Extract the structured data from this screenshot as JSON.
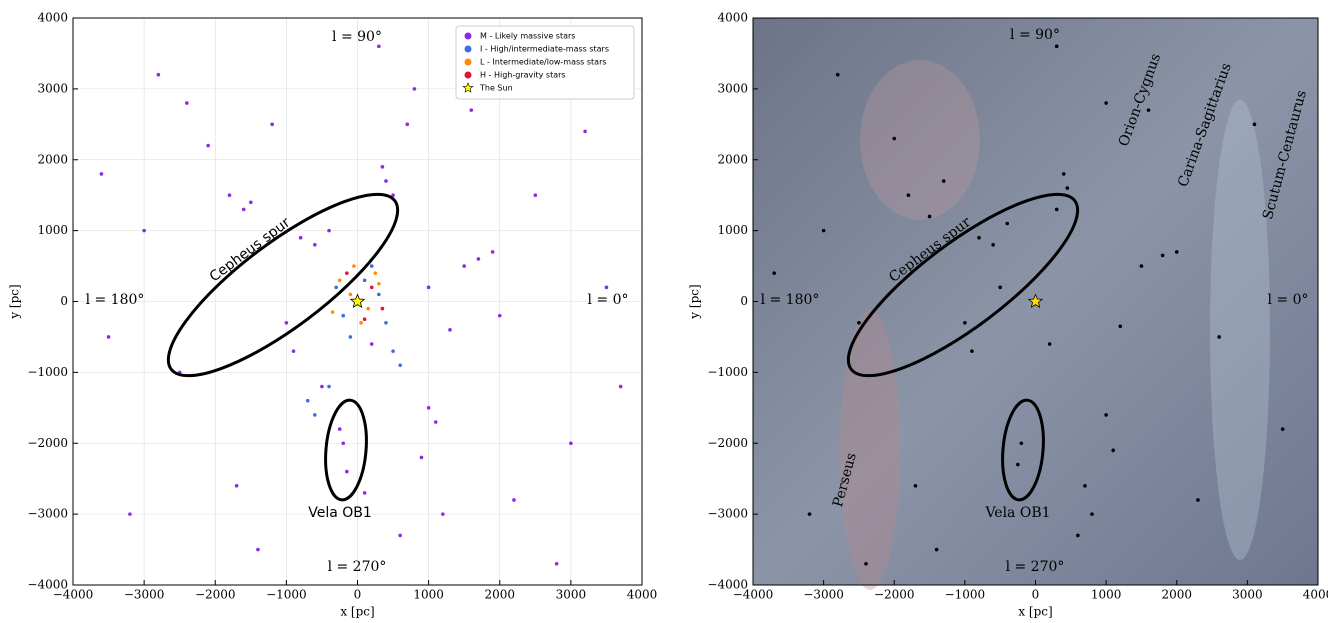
{
  "chart_data": [
    {
      "type": "scatter",
      "xlabel": "x [pc]",
      "ylabel": "y [pc]",
      "grid": true,
      "legend": "upper right",
      "xlim": [
        -4000,
        4000
      ],
      "ylim": [
        -4000,
        4000
      ],
      "xticks": [
        {
          "value": -4000,
          "label": "−4000"
        },
        {
          "value": -3000,
          "label": "−3000"
        },
        {
          "value": -2000,
          "label": "−2000"
        },
        {
          "value": -1000,
          "label": "−1000"
        },
        0,
        1000,
        2000,
        3000,
        4000
      ],
      "yticks": [
        {
          "value": -4000,
          "label": "−4000"
        },
        {
          "value": -3000,
          "label": "−3000"
        },
        {
          "value": -2000,
          "label": "−2000"
        },
        {
          "value": -1000,
          "label": "−1000"
        },
        0,
        1000,
        2000,
        3000,
        4000
      ],
      "annotations": [
        "l = 90°",
        "l = 180°",
        "l = 0°",
        "l = 270°",
        "Cepheus spur",
        "Vela OB1"
      ],
      "series": [
        {
          "name": "M - Likely massive stars",
          "color": "#8a2be2",
          "x": [
            -1800,
            -1600,
            -1500,
            -2100,
            -1200,
            400,
            350,
            500,
            1500,
            1700,
            1900,
            1300,
            1100,
            1000,
            900,
            1200,
            -200,
            -150,
            -250,
            700,
            800,
            600,
            -3000,
            -3500,
            2500,
            3000,
            3500,
            -2500,
            -800,
            -600,
            -400,
            -1000,
            200,
            -1400,
            2200,
            -2800,
            1600,
            -1700,
            300,
            -3200,
            3200,
            2800,
            -2400,
            1000,
            -500,
            100,
            -3600,
            3700,
            -900,
            2000
          ],
          "values": [
            1500,
            1300,
            1400,
            2200,
            2500,
            1700,
            1900,
            1500,
            500,
            600,
            700,
            -400,
            -1700,
            -1500,
            -2200,
            -3000,
            -2000,
            -2400,
            -1800,
            2500,
            3000,
            -3300,
            1000,
            -500,
            1500,
            -2000,
            200,
            -1000,
            900,
            800,
            1000,
            -300,
            -600,
            -3500,
            -2800,
            3200,
            2700,
            -2600,
            3600,
            -3000,
            2400,
            -3700,
            2800,
            200,
            -1200,
            -2700,
            1800,
            -1200,
            -700,
            -200
          ]
        },
        {
          "name": "I - High/intermediate-mass stars",
          "color": "#4169e1",
          "x": [
            100,
            -200,
            300,
            -100,
            400,
            500,
            -300,
            200,
            600,
            -400,
            -600,
            -700
          ],
          "values": [
            300,
            -200,
            100,
            -500,
            -300,
            -700,
            200,
            500,
            -900,
            -1200,
            -1600,
            -1400
          ]
        },
        {
          "name": "L - Intermediate/low-mass stars",
          "color": "#ff8c00",
          "x": [
            -100,
            150,
            -250,
            300,
            50,
            -350,
            250,
            -50
          ],
          "values": [
            100,
            -100,
            300,
            250,
            -300,
            -150,
            400,
            500
          ]
        },
        {
          "name": "H - High-gravity stars",
          "color": "#dc143c",
          "x": [
            200,
            -150,
            350,
            100
          ],
          "values": [
            200,
            400,
            -100,
            -250
          ]
        },
        {
          "name": "The Sun",
          "color": "#ffff00",
          "marker": "star",
          "x": [
            0
          ],
          "values": [
            0
          ]
        }
      ]
    },
    {
      "type": "scatter",
      "xlabel": "x [pc]",
      "ylabel": "y [pc]",
      "grid": false,
      "xlim": [
        -4000,
        4000
      ],
      "ylim": [
        -4000,
        4000
      ],
      "xticks": [
        {
          "value": -4000,
          "label": "−4000"
        },
        {
          "value": -3000,
          "label": "−3000"
        },
        {
          "value": -2000,
          "label": "−2000"
        },
        {
          "value": -1000,
          "label": "−1000"
        },
        0,
        1000,
        2000,
        3000,
        4000
      ],
      "yticks": [
        {
          "value": -4000,
          "label": "−4000"
        },
        {
          "value": -3000,
          "label": "−3000"
        },
        {
          "value": -2000,
          "label": "−2000"
        },
        {
          "value": -1000,
          "label": "−1000"
        },
        0,
        1000,
        2000,
        3000,
        4000
      ],
      "annotations": [
        "l = 90°",
        "l = 180°",
        "l = 0°",
        "l = 270°",
        "Cepheus spur",
        "Vela OB1",
        "Orion-Cygnus",
        "Carina-Sagittarius",
        "Scutum-Centaurus",
        "Perseus"
      ],
      "series": [
        {
          "color": "#000000",
          "x": [
            -1800,
            -1500,
            -1300,
            -2000,
            400,
            450,
            300,
            1500,
            1800,
            2000,
            1200,
            1000,
            1100,
            -200,
            -250,
            700,
            800,
            600,
            -3000,
            2600,
            -2500,
            -800,
            -600,
            -400,
            -1000,
            200,
            -1400,
            2300,
            -2800,
            1600,
            -1700,
            300,
            -3200,
            3100,
            -2400,
            1000,
            -500,
            -3700,
            3500,
            -900
          ],
          "values": [
            1500,
            1200,
            1700,
            2300,
            1800,
            1600,
            1300,
            500,
            650,
            700,
            -350,
            -1600,
            -2100,
            -2000,
            -2300,
            -2600,
            -3000,
            -3300,
            1000,
            -500,
            -300,
            900,
            800,
            1100,
            -300,
            -600,
            -3500,
            -2800,
            3200,
            2700,
            -2600,
            3600,
            -3000,
            2500,
            -3700,
            2800,
            200,
            400,
            -1800,
            -700
          ]
        },
        {
          "color": "#ffd700",
          "marker": "star",
          "x": [
            0
          ],
          "values": [
            0
          ]
        }
      ]
    }
  ]
}
